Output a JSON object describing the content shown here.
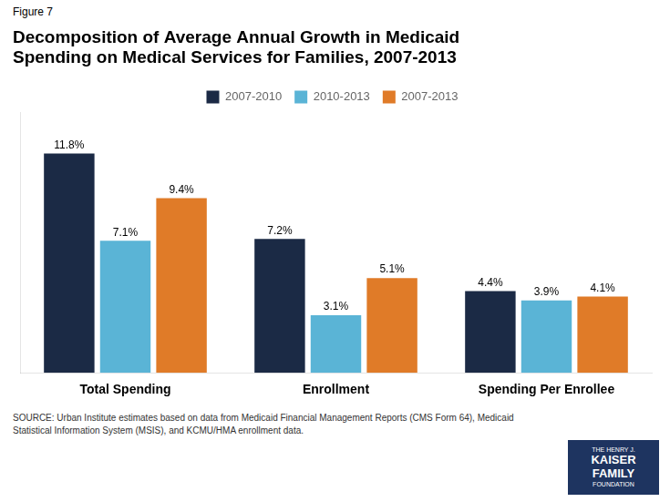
{
  "chart_data": {
    "type": "bar",
    "title": "Decomposition of Average Annual Growth in Medicaid\nSpending on Medical Services for Families, 2007-2013",
    "categories": [
      "Total Spending",
      "Enrollment",
      "Spending Per Enrollee"
    ],
    "series": [
      {
        "name": "2007-2010",
        "color": "#1b2a45",
        "values": [
          11.8,
          7.2,
          4.4
        ],
        "value_labels": [
          "11.8%",
          "7.2%",
          "4.4%"
        ]
      },
      {
        "name": "2010-2013",
        "color": "#5ab4d6",
        "values": [
          7.1,
          3.1,
          3.9
        ],
        "value_labels": [
          "7.1%",
          "3.1%",
          "3.9%"
        ]
      },
      {
        "name": "2007-2013",
        "color": "#e07b28",
        "values": [
          9.4,
          5.1,
          4.1
        ],
        "value_labels": [
          "9.4%",
          "5.1%",
          "4.1%"
        ]
      }
    ],
    "ylim": [
      0,
      14
    ],
    "yticks": [],
    "tick_labels": "x",
    "grid": false,
    "legend": "top",
    "data_labels": true,
    "annotations": [
      {
        "text": "Figure 7"
      },
      {
        "text": "SOURCE: Urban Institute estimates based on data from Medicaid Financial Management Reports (CMS Form 64), Medicaid\nStatistical Information System (MSIS), and KCMU/HMA enrollment data."
      },
      {
        "text": "THE HENRY J.\nKAISER\nFAMILY\nFOUNDATION",
        "color": "#1e3460"
      }
    ]
  }
}
